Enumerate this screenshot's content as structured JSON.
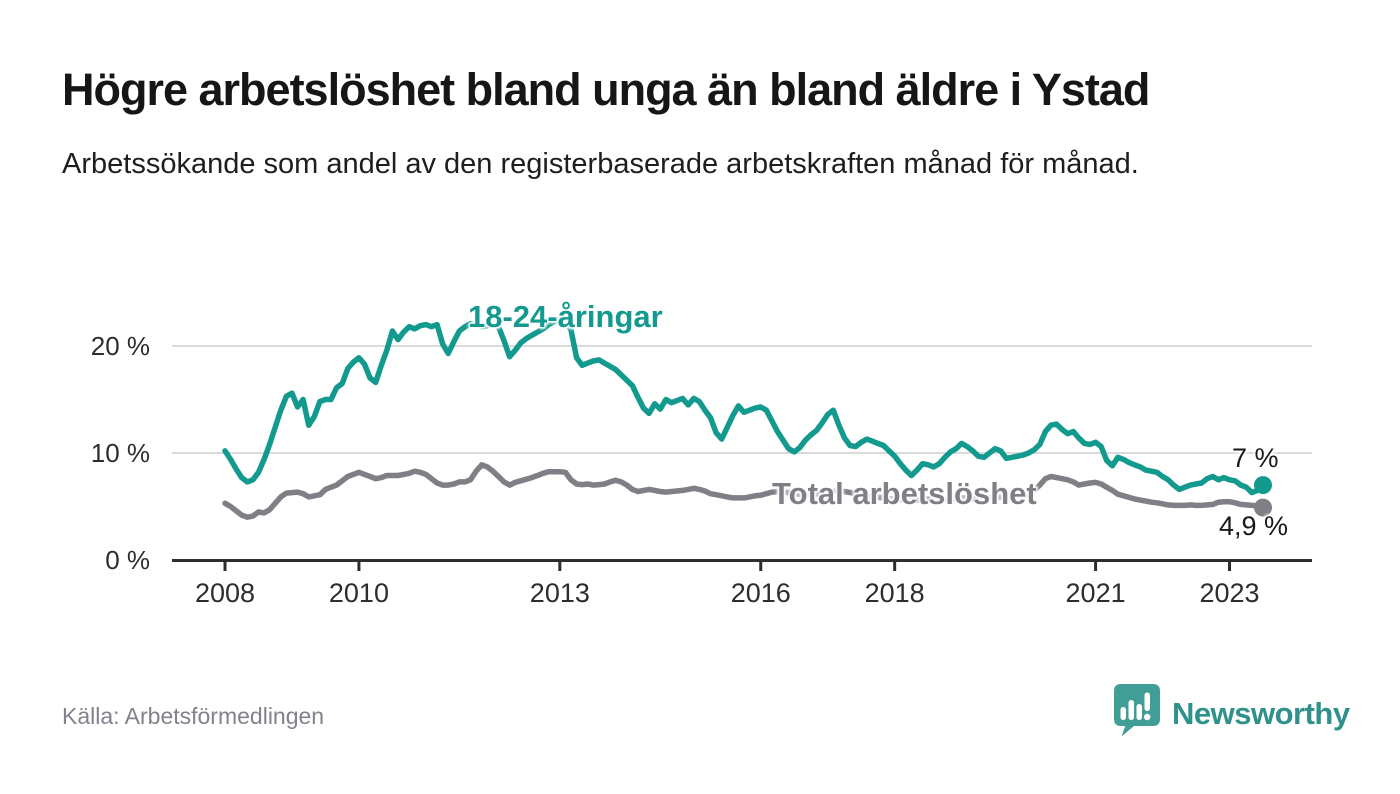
{
  "header": {
    "title": "Högre arbetslöshet bland unga än bland äldre i Ystad",
    "subtitle": "Arbetssökande som andel av den registerbaserade arbetskraften månad för månad."
  },
  "footer": {
    "source": "Källa: Arbetsförmedlingen",
    "brand": "Newsworthy",
    "brand_icon": "bar-chart-speech-bubble-icon"
  },
  "colors": {
    "youth": "#139a8e",
    "total": "#7f7f86",
    "grid": "#dbdbdb",
    "axis": "#2d2d2d",
    "tick_text": "#2d2d2d",
    "end_label_text": "#191919",
    "title": "#161616",
    "source_text": "#82828c",
    "brand_bubble": "#419e96",
    "brand_text": "#2f918b"
  },
  "chart_data": {
    "type": "line",
    "x_unit": "month",
    "x_start": "2008-01",
    "x_end": "2023-07",
    "grid": "horizontal",
    "ylim": [
      0,
      24
    ],
    "y_ticks": [
      {
        "label": "0 %",
        "value": 0
      },
      {
        "label": "10 %",
        "value": 10
      },
      {
        "label": "20 %",
        "value": 20
      }
    ],
    "x_ticks": [
      {
        "label": "2008",
        "year": 2008
      },
      {
        "label": "2010",
        "year": 2010
      },
      {
        "label": "2013",
        "year": 2013
      },
      {
        "label": "2016",
        "year": 2016
      },
      {
        "label": "2018",
        "year": 2018
      },
      {
        "label": "2021",
        "year": 2021
      },
      {
        "label": "2023",
        "year": 2023
      }
    ],
    "series": [
      {
        "name": "Total arbetslöshet",
        "color": "#7f7f86",
        "end_label": "4,9 %",
        "values": [
          5.3,
          5.0,
          4.6,
          4.2,
          4.0,
          4.1,
          4.5,
          4.4,
          4.7,
          5.3,
          5.9,
          6.25,
          6.3,
          6.35,
          6.2,
          5.9,
          6.0,
          6.1,
          6.6,
          6.8,
          7.0,
          7.4,
          7.8,
          8.0,
          8.2,
          8.0,
          7.8,
          7.6,
          7.7,
          7.9,
          7.9,
          7.9,
          8.0,
          8.1,
          8.3,
          8.2,
          8.0,
          7.6,
          7.2,
          7.0,
          7.0,
          7.1,
          7.3,
          7.3,
          7.5,
          8.3,
          8.9,
          8.7,
          8.3,
          7.8,
          7.3,
          7.0,
          7.25,
          7.4,
          7.55,
          7.7,
          7.9,
          8.1,
          8.25,
          8.25,
          8.25,
          8.2,
          7.5,
          7.1,
          7.05,
          7.1,
          7.0,
          7.05,
          7.1,
          7.3,
          7.45,
          7.3,
          7.0,
          6.6,
          6.4,
          6.5,
          6.6,
          6.5,
          6.4,
          6.35,
          6.4,
          6.45,
          6.5,
          6.6,
          6.7,
          6.6,
          6.45,
          6.2,
          6.1,
          6.0,
          5.9,
          5.8,
          5.8,
          5.8,
          5.9,
          6.0,
          6.05,
          6.2,
          6.35,
          6.4,
          6.35,
          6.3,
          6.2,
          6.15,
          6.1,
          6.1,
          6.15,
          6.2,
          6.3,
          6.4,
          6.45,
          6.4,
          6.3,
          6.2,
          6.1,
          6.0,
          5.9,
          5.85,
          5.8,
          5.75,
          5.7,
          5.65,
          5.6,
          5.55,
          5.6,
          5.65,
          5.7,
          5.65,
          5.6,
          5.65,
          5.7,
          5.75,
          5.8,
          5.75,
          5.7,
          5.65,
          5.7,
          5.8,
          5.9,
          5.85,
          5.8,
          5.85,
          5.9,
          6.0,
          6.2,
          6.5,
          7.0,
          7.6,
          7.8,
          7.7,
          7.6,
          7.5,
          7.3,
          7.0,
          7.1,
          7.2,
          7.25,
          7.1,
          6.8,
          6.5,
          6.15,
          6.0,
          5.85,
          5.7,
          5.6,
          5.5,
          5.4,
          5.35,
          5.25,
          5.15,
          5.1,
          5.1,
          5.1,
          5.15,
          5.1,
          5.1,
          5.15,
          5.2,
          5.4,
          5.45,
          5.45,
          5.35,
          5.2,
          5.15,
          5.1,
          5.05,
          4.9
        ]
      },
      {
        "name": "18-24-åringar",
        "color": "#139a8e",
        "end_label": "7 %",
        "values": [
          10.2,
          9.4,
          8.5,
          7.7,
          7.3,
          7.5,
          8.2,
          9.4,
          10.8,
          12.4,
          14.0,
          15.3,
          15.6,
          14.3,
          15.0,
          12.6,
          13.4,
          14.8,
          15.0,
          15.0,
          16.1,
          16.5,
          17.9,
          18.5,
          18.9,
          18.3,
          17.0,
          16.6,
          18.2,
          19.6,
          21.4,
          20.6,
          21.3,
          21.8,
          21.6,
          21.9,
          22.0,
          21.8,
          22.0,
          20.2,
          19.3,
          20.4,
          21.4,
          21.8,
          22.1,
          22.0,
          21.8,
          21.9,
          22.0,
          21.8,
          20.5,
          19.0,
          19.6,
          20.3,
          20.7,
          21.0,
          21.3,
          21.6,
          22.0,
          22.3,
          22.5,
          22.4,
          21.5,
          18.9,
          18.2,
          18.4,
          18.6,
          18.7,
          18.4,
          18.1,
          17.8,
          17.3,
          16.8,
          16.3,
          15.2,
          14.2,
          13.7,
          14.6,
          14.1,
          15.0,
          14.7,
          14.9,
          15.1,
          14.5,
          15.1,
          14.8,
          14.0,
          13.3,
          11.9,
          11.3,
          12.4,
          13.5,
          14.4,
          13.8,
          14.0,
          14.2,
          14.3,
          14.0,
          13.0,
          12.0,
          11.2,
          10.4,
          10.1,
          10.5,
          11.2,
          11.7,
          12.1,
          12.8,
          13.6,
          14.0,
          12.6,
          11.4,
          10.7,
          10.6,
          11.0,
          11.3,
          11.1,
          10.9,
          10.7,
          10.2,
          9.7,
          9.0,
          8.4,
          7.9,
          8.4,
          9.0,
          8.9,
          8.7,
          9.0,
          9.6,
          10.1,
          10.4,
          10.9,
          10.6,
          10.2,
          9.7,
          9.6,
          10.0,
          10.4,
          10.2,
          9.5,
          9.6,
          9.7,
          9.8,
          10.0,
          10.3,
          10.8,
          12.0,
          12.6,
          12.7,
          12.2,
          11.8,
          12.0,
          11.4,
          10.9,
          10.8,
          11.0,
          10.6,
          9.3,
          8.8,
          9.6,
          9.4,
          9.1,
          8.9,
          8.7,
          8.4,
          8.3,
          8.2,
          7.8,
          7.5,
          7.0,
          6.6,
          6.8,
          7.0,
          7.1,
          7.2,
          7.6,
          7.8,
          7.5,
          7.7,
          7.5,
          7.4,
          7.0,
          6.8,
          6.3,
          6.5,
          7.0
        ]
      }
    ]
  }
}
